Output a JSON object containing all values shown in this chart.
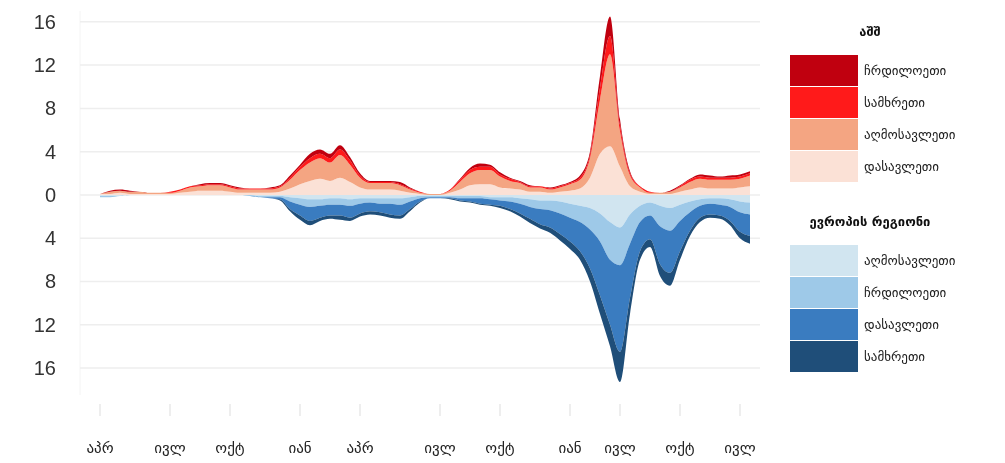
{
  "chart_data": [
    {
      "type": "area",
      "stacked": true,
      "legend": "right",
      "grid": "y",
      "legend_title": "აშშ",
      "tick_labels": "y",
      "categories": [
        null,
        null,
        null,
        null,
        null,
        null,
        null,
        null,
        null,
        null,
        null,
        null,
        null,
        null,
        null,
        null,
        null,
        null,
        null,
        null,
        null,
        null,
        null,
        null,
        null,
        null,
        null,
        null,
        null,
        null,
        null,
        null,
        null,
        null,
        null,
        null,
        null,
        null,
        null,
        null,
        null,
        null,
        null,
        null,
        null,
        null,
        null,
        null,
        null,
        null,
        null,
        null,
        null,
        null,
        null,
        null,
        null,
        null,
        null,
        null,
        null,
        null,
        null,
        null,
        null,
        null
      ],
      "ylim": [
        0,
        17
      ],
      "yticks": [
        0,
        4,
        8,
        12,
        16
      ],
      "series": [
        {
          "name": "დასავლეთი",
          "color": "#fbe1d6",
          "values": [
            0.1,
            0.1,
            0.2,
            0.1,
            0.1,
            0.1,
            0.1,
            0.1,
            0.2,
            0.3,
            0.4,
            0.4,
            0.4,
            0.3,
            0.2,
            0.2,
            0.2,
            0.2,
            0.3,
            0.6,
            1.0,
            1.3,
            1.5,
            1.3,
            1.6,
            1.2,
            0.7,
            0.5,
            0.5,
            0.5,
            0.4,
            0.2,
            0.1,
            0,
            0,
            0.2,
            0.5,
            0.9,
            1.0,
            1.0,
            0.7,
            0.6,
            0.5,
            0.3,
            0.3,
            0.2,
            0.3,
            0.4,
            0.6,
            1.6,
            3.8,
            4.5,
            2.6,
            0.8,
            0.3,
            0.1,
            0.1,
            0.1,
            0.3,
            0.5,
            0.7,
            0.6,
            0.6,
            0.6,
            0.7,
            0.8
          ]
        },
        {
          "name": "აღმოსავლეთი",
          "color": "#f4a582",
          "values": [
            0,
            0.2,
            0.2,
            0.2,
            0.2,
            0.1,
            0.1,
            0.1,
            0.2,
            0.4,
            0.4,
            0.5,
            0.5,
            0.4,
            0.3,
            0.3,
            0.3,
            0.3,
            0.4,
            0.8,
            1.3,
            1.7,
            1.9,
            1.7,
            2.1,
            1.6,
            0.9,
            0.6,
            0.6,
            0.6,
            0.5,
            0.3,
            0.1,
            0.1,
            0.1,
            0.2,
            0.7,
            1.1,
            1.3,
            1.3,
            1.0,
            0.7,
            0.6,
            0.4,
            0.4,
            0.3,
            0.4,
            0.6,
            0.8,
            1.8,
            5.0,
            8.5,
            3.3,
            1.0,
            0.4,
            0.1,
            0.1,
            0.2,
            0.4,
            0.7,
            0.8,
            0.8,
            0.8,
            0.8,
            0.8,
            1.0
          ]
        },
        {
          "name": "სამხრეთი",
          "color": "#ff1a1a",
          "values": [
            0,
            0,
            0,
            0,
            0,
            0,
            0,
            0.1,
            0.1,
            0.1,
            0.1,
            0.1,
            0.1,
            0.1,
            0.1,
            0.1,
            0.1,
            0.1,
            0.1,
            0.2,
            0.3,
            0.4,
            0.4,
            0.4,
            0.5,
            0.4,
            0.2,
            0.1,
            0.1,
            0.1,
            0.1,
            0.1,
            0.1,
            0,
            0,
            0.1,
            0.2,
            0.3,
            0.3,
            0.3,
            0.2,
            0.2,
            0.1,
            0.1,
            0.1,
            0.1,
            0.1,
            0.1,
            0.2,
            0.3,
            1.1,
            1.7,
            0.6,
            0.2,
            0.1,
            0.1,
            0,
            0,
            0.1,
            0.2,
            0.2,
            0.2,
            0.2,
            0.2,
            0.2,
            0.2
          ]
        },
        {
          "name": "ჩრდილოეთი",
          "color": "#c0000f",
          "values": [
            0,
            0.1,
            0.1,
            0.1,
            0,
            0,
            0,
            0,
            0,
            0,
            0.1,
            0.1,
            0.1,
            0.1,
            0.1,
            0,
            0,
            0.1,
            0.1,
            0.2,
            0.2,
            0.4,
            0.4,
            0.4,
            0.4,
            0.3,
            0.2,
            0.1,
            0.1,
            0.1,
            0.2,
            0.1,
            0,
            0,
            0,
            0,
            0.1,
            0.2,
            0.3,
            0.2,
            0.2,
            0.1,
            0.1,
            0.1,
            0,
            0.1,
            0.1,
            0.1,
            0.2,
            0.3,
            1.1,
            1.8,
            0.5,
            0.2,
            0,
            0,
            0,
            0.1,
            0.1,
            0.1,
            0.2,
            0.2,
            0.1,
            0.2,
            0.2,
            0.2
          ]
        }
      ]
    },
    {
      "type": "area",
      "stacked": true,
      "legend": "right",
      "grid": "y",
      "legend_title": "ევროპის რეგიონი",
      "categories": [
        "აპრ",
        null,
        null,
        null,
        null,
        null,
        null,
        "ივლ",
        null,
        null,
        null,
        null,
        null,
        "ოქტ",
        null,
        null,
        null,
        null,
        null,
        null,
        "იან",
        null,
        null,
        null,
        null,
        null,
        "აპრ",
        null,
        null,
        null,
        null,
        null,
        null,
        null,
        "ივლ",
        null,
        null,
        null,
        null,
        null,
        "ოქტ",
        null,
        null,
        null,
        null,
        null,
        null,
        "იან",
        null,
        null,
        null,
        null,
        "ივლ",
        null,
        null,
        null,
        null,
        null,
        "ოქტ",
        null,
        null,
        null,
        null,
        null,
        "ივლ",
        null
      ],
      "ylim": [
        18.5,
        0
      ],
      "yticks": [
        4,
        8,
        12,
        16
      ],
      "series": [
        {
          "name": "აღმოსავლეთი",
          "color": "#d1e5f0",
          "values": [
            0.1,
            0.1,
            0.1,
            0,
            0,
            0,
            0,
            0,
            0,
            0,
            0,
            0,
            0,
            0,
            0,
            0,
            0.1,
            0.1,
            0.1,
            0.2,
            0.3,
            0.4,
            0.4,
            0.3,
            0.3,
            0.4,
            0.3,
            0.3,
            0.3,
            0.3,
            0.3,
            0.2,
            0.1,
            0.1,
            0.1,
            0.1,
            0.1,
            0.1,
            0.1,
            0.2,
            0.2,
            0.2,
            0.3,
            0.4,
            0.5,
            0.5,
            0.6,
            0.8,
            1.0,
            1.2,
            1.7,
            2.5,
            3.0,
            1.8,
            1.0,
            0.7,
            1.0,
            1.2,
            0.9,
            0.6,
            0.4,
            0.3,
            0.3,
            0.4,
            0.6,
            0.7
          ]
        },
        {
          "name": "ჩრდილოეთი",
          "color": "#9ec9e8",
          "values": [
            0.1,
            0.1,
            0,
            0,
            0,
            0,
            0,
            0,
            0,
            0,
            0,
            0,
            0,
            0,
            0,
            0.1,
            0.1,
            0.1,
            0.1,
            0.4,
            0.6,
            0.7,
            0.6,
            0.6,
            0.6,
            0.6,
            0.5,
            0.4,
            0.5,
            0.5,
            0.6,
            0.4,
            0.2,
            0.1,
            0.1,
            0.1,
            0.2,
            0.2,
            0.2,
            0.2,
            0.3,
            0.4,
            0.5,
            0.7,
            0.8,
            0.9,
            1.1,
            1.3,
            1.5,
            2.0,
            2.6,
            3.5,
            3.5,
            2.7,
            1.5,
            1.2,
            1.9,
            2.1,
            1.5,
            1.0,
            0.6,
            0.5,
            0.6,
            0.7,
            1.0,
            1.1
          ]
        },
        {
          "name": "დასავლეთი",
          "color": "#3a7cc0",
          "values": [
            0,
            0,
            0,
            0,
            0,
            0,
            0,
            0,
            0,
            0,
            0,
            0,
            0,
            0,
            0,
            0,
            0,
            0.1,
            0.2,
            0.7,
            1.0,
            1.3,
            1.1,
            1.0,
            1.0,
            1.1,
            0.9,
            0.8,
            0.8,
            1.0,
            1.0,
            0.7,
            0.3,
            0.1,
            0.1,
            0.1,
            0.2,
            0.3,
            0.5,
            0.5,
            0.5,
            0.7,
            0.9,
            1.1,
            1.4,
            1.6,
            1.9,
            2.2,
            2.7,
            3.6,
            5.0,
            6.0,
            8.0,
            5.0,
            2.7,
            2.2,
            3.5,
            3.9,
            2.8,
            1.7,
            1.1,
            1.0,
            1.0,
            1.3,
            1.8,
            2.0
          ]
        },
        {
          "name": "სამხრეთი",
          "color": "#1f4e79",
          "values": [
            0,
            0,
            0,
            0,
            0,
            0,
            0,
            0,
            0,
            0,
            0,
            0,
            0,
            0,
            0,
            0,
            0,
            0,
            0.1,
            0.2,
            0.4,
            0.4,
            0.3,
            0.3,
            0.4,
            0.3,
            0.3,
            0.3,
            0.3,
            0.3,
            0.3,
            0.2,
            0.1,
            0,
            0,
            0.1,
            0.1,
            0.1,
            0.1,
            0.1,
            0.2,
            0.2,
            0.3,
            0.4,
            0.4,
            0.5,
            0.6,
            0.7,
            0.8,
            1.2,
            1.7,
            2.0,
            2.8,
            1.5,
            0.8,
            0.7,
            1.1,
            1.2,
            0.8,
            0.5,
            0.4,
            0.3,
            0.3,
            0.4,
            0.6,
            0.7
          ]
        }
      ]
    }
  ]
}
